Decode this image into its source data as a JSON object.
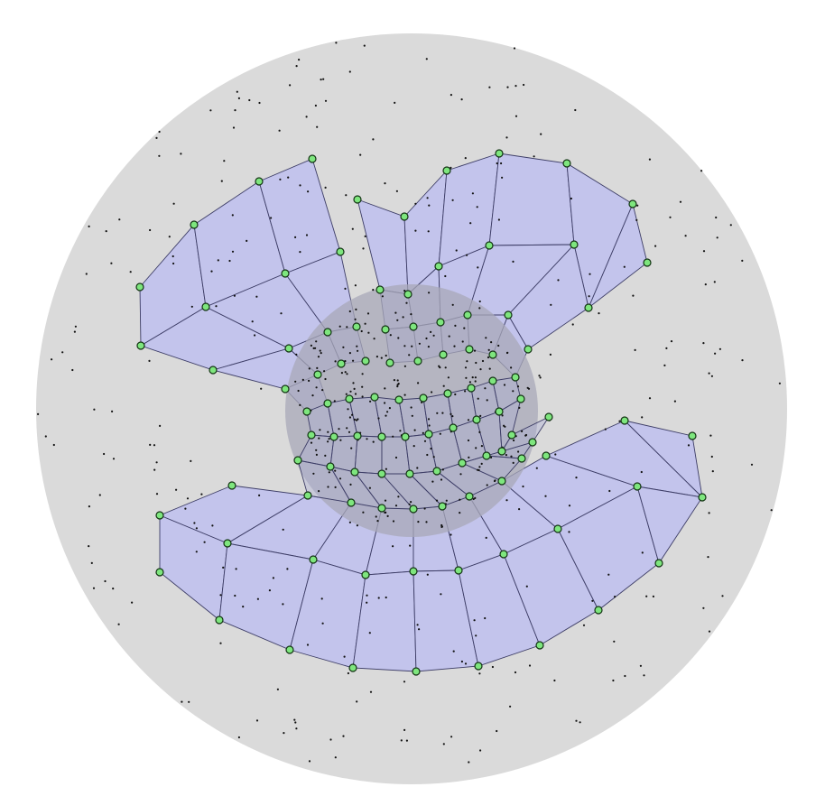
{
  "diagram": {
    "description_type": "mesh-parameterization",
    "colors": {
      "background": "#ffffff",
      "outer_disk": "#dadada",
      "inner_disk": "#a8a8b8",
      "mesh_fill": "#c3c4ec",
      "mesh_edge": "#3d3d66",
      "vertex_fill": "#7ee67e",
      "vertex_stroke": "#123312",
      "sample_dot": "#111111"
    },
    "legend": null
  }
}
